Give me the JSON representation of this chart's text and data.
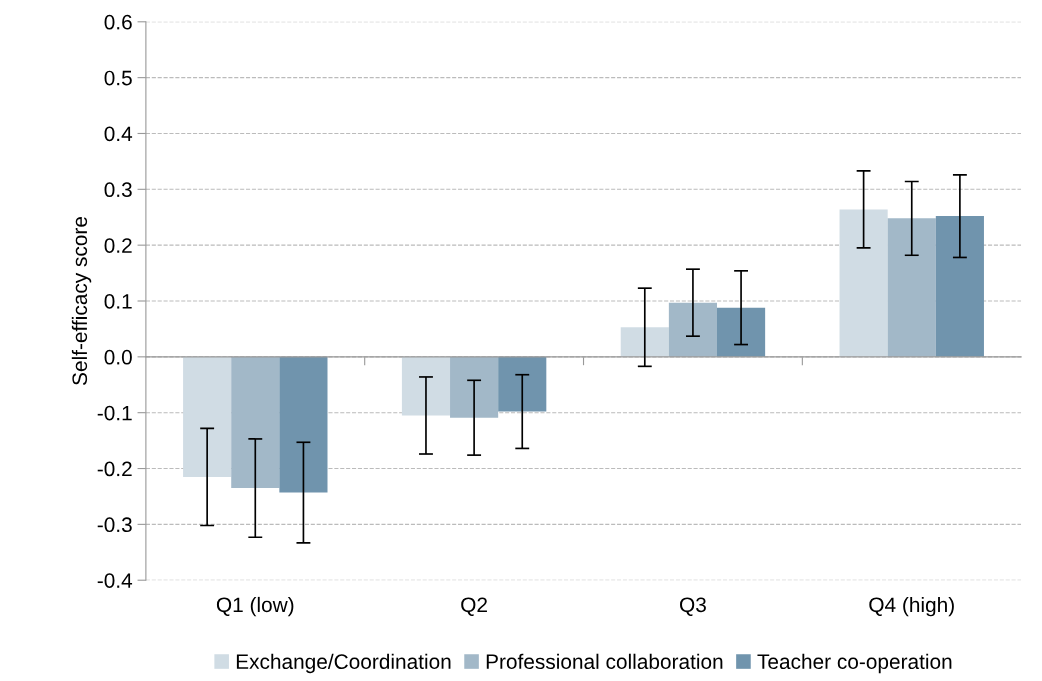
{
  "chart_data": {
    "type": "bar",
    "ylabel": "Self-efficacy score",
    "categories": [
      "Q1 (low)",
      "Q2",
      "Q3",
      "Q4 (high)"
    ],
    "series": [
      {
        "name": "Exchange/Coordination",
        "color": "#d0dce4",
        "values": [
          -0.215,
          -0.105,
          0.053,
          0.264
        ],
        "errors": [
          0.087,
          0.069,
          0.07,
          0.069
        ]
      },
      {
        "name": "Professional collaboration",
        "color": "#a2b8c8",
        "values": [
          -0.235,
          -0.109,
          0.097,
          0.248
        ],
        "errors": [
          0.088,
          0.067,
          0.06,
          0.066
        ]
      },
      {
        "name": "Teacher co-operation",
        "color": "#7094ad",
        "values": [
          -0.243,
          -0.098,
          0.088,
          0.252
        ],
        "errors": [
          0.09,
          0.066,
          0.066,
          0.074
        ]
      }
    ],
    "ylim": [
      -0.4,
      0.6
    ],
    "yticks": [
      {
        "value": -0.4,
        "label": "-0.4"
      },
      {
        "value": -0.3,
        "label": "-0.3"
      },
      {
        "value": -0.2,
        "label": "-0.2"
      },
      {
        "value": -0.1,
        "label": "-0.1"
      },
      {
        "value": 0,
        "label": "0.0"
      },
      {
        "value": 0.1,
        "label": "0.1"
      },
      {
        "value": 0.2,
        "label": "0.2"
      },
      {
        "value": 0.3,
        "label": "0.3"
      },
      {
        "value": 0.4,
        "label": "0.4"
      },
      {
        "value": 0.5,
        "label": "0.5"
      },
      {
        "value": 0.6,
        "label": "0.6"
      }
    ],
    "grid": "y",
    "legend": "bottom"
  }
}
